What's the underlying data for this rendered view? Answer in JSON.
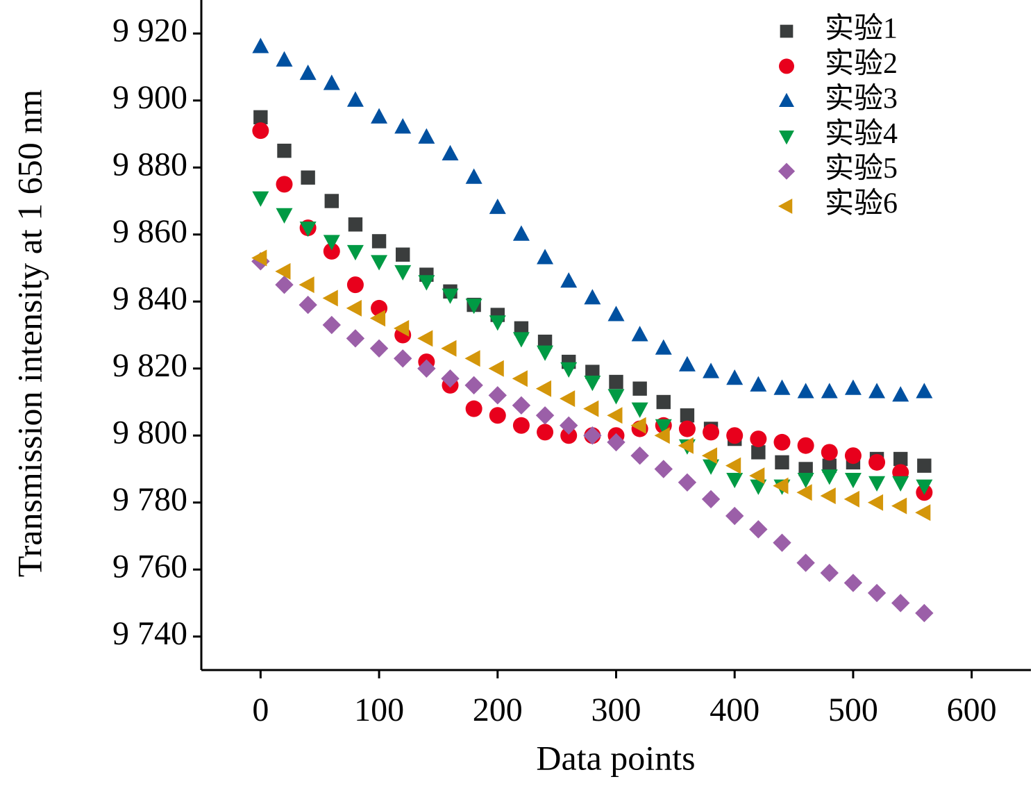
{
  "chart_data": {
    "type": "scatter",
    "xlabel": "Data points",
    "ylabel": "Transmission intensity at 1 650 nm",
    "xlim": [
      -50,
      650
    ],
    "ylim": [
      9730,
      9930
    ],
    "xticks": [
      0,
      100,
      200,
      300,
      400,
      500,
      600
    ],
    "yticks": [
      {
        "value": 9740,
        "label": "9 740"
      },
      {
        "value": 9760,
        "label": "9 760"
      },
      {
        "value": 9780,
        "label": "9 780"
      },
      {
        "value": 9800,
        "label": "9 800"
      },
      {
        "value": 9820,
        "label": "9 820"
      },
      {
        "value": 9840,
        "label": "9 840"
      },
      {
        "value": 9860,
        "label": "9 860"
      },
      {
        "value": 9880,
        "label": "9 880"
      },
      {
        "value": 9900,
        "label": "9 900"
      },
      {
        "value": 9920,
        "label": "9 920"
      }
    ],
    "legend": "upper right",
    "x": [
      0,
      20,
      40,
      60,
      80,
      100,
      120,
      140,
      160,
      180,
      200,
      220,
      240,
      260,
      280,
      300,
      320,
      340,
      360,
      380,
      400,
      420,
      440,
      460,
      480,
      500,
      520,
      540,
      560
    ],
    "series": [
      {
        "name": "实验1",
        "color": "#3a3d3d",
        "marker": "square",
        "values": [
          9895,
          9885,
          9877,
          9870,
          9863,
          9858,
          9854,
          9848,
          9843,
          9839,
          9836,
          9832,
          9828,
          9822,
          9819,
          9816,
          9814,
          9810,
          9806,
          9802,
          9799,
          9795,
          9792,
          9790,
          9791,
          9792,
          9793,
          9793,
          9791
        ]
      },
      {
        "name": "实验2",
        "color": "#e8001c",
        "marker": "circle",
        "values": [
          9891,
          9875,
          9862,
          9855,
          9845,
          9838,
          9830,
          9822,
          9815,
          9808,
          9806,
          9803,
          9801,
          9800,
          9800,
          9800,
          9802,
          9803,
          9802,
          9801,
          9800,
          9799,
          9798,
          9797,
          9795,
          9794,
          9792,
          9789,
          9783
        ]
      },
      {
        "name": "实验3",
        "color": "#0050a0",
        "marker": "triangle-up",
        "values": [
          9916,
          9912,
          9908,
          9905,
          9900,
          9895,
          9892,
          9889,
          9884,
          9877,
          9868,
          9860,
          9853,
          9846,
          9841,
          9836,
          9830,
          9826,
          9821,
          9819,
          9817,
          9815,
          9814,
          9813,
          9813,
          9814,
          9813,
          9812,
          9813
        ]
      },
      {
        "name": "实验4",
        "color": "#009a44",
        "marker": "triangle-down",
        "values": [
          9871,
          9866,
          9862,
          9858,
          9855,
          9852,
          9849,
          9846,
          9842,
          9839,
          9834,
          9829,
          9825,
          9820,
          9816,
          9812,
          9808,
          9803,
          9797,
          9791,
          9787,
          9785,
          9785,
          9787,
          9788,
          9787,
          9786,
          9786,
          9785
        ]
      },
      {
        "name": "实验5",
        "color": "#9b5fa8",
        "marker": "diamond",
        "values": [
          9852,
          9845,
          9839,
          9833,
          9829,
          9826,
          9823,
          9820,
          9817,
          9815,
          9812,
          9809,
          9806,
          9803,
          9800,
          9798,
          9794,
          9790,
          9786,
          9781,
          9776,
          9772,
          9768,
          9762,
          9759,
          9756,
          9753,
          9750,
          9747
        ]
      },
      {
        "name": "实验6",
        "color": "#d4960a",
        "marker": "triangle-left",
        "values": [
          9853,
          9849,
          9845,
          9841,
          9838,
          9835,
          9832,
          9829,
          9826,
          9823,
          9820,
          9817,
          9814,
          9811,
          9808,
          9806,
          9803,
          9800,
          9797,
          9794,
          9791,
          9788,
          9785,
          9783,
          9782,
          9781,
          9780,
          9779,
          9777
        ]
      }
    ]
  }
}
